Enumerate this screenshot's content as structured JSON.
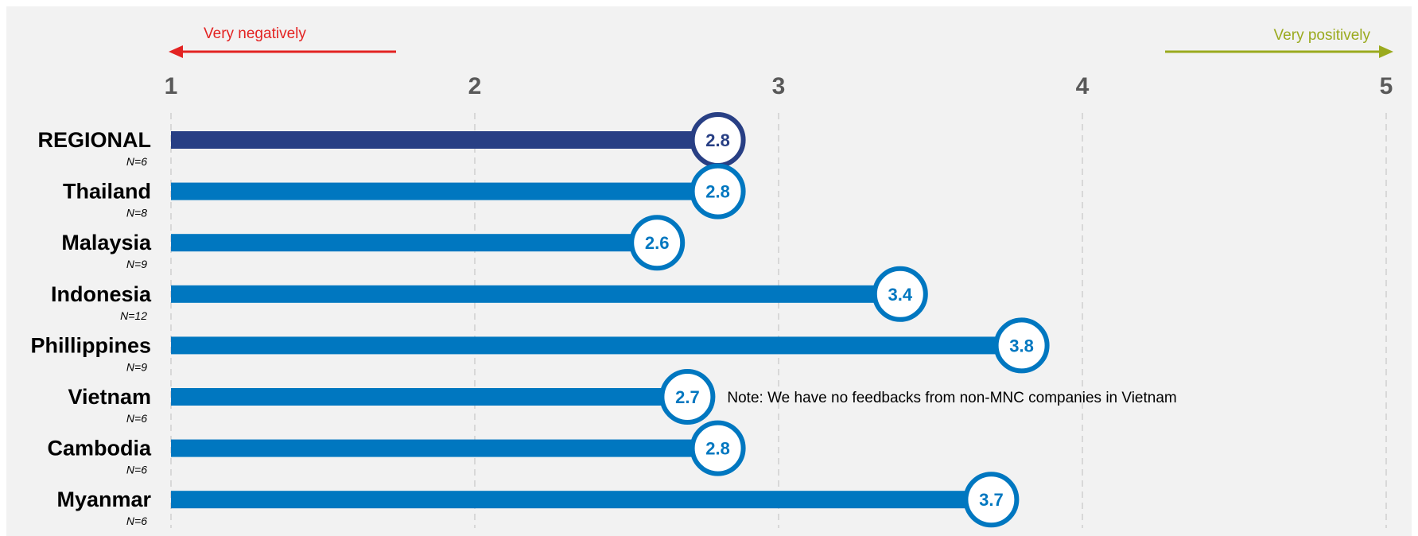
{
  "chart_data": {
    "type": "bar",
    "orientation": "horizontal",
    "x_range": [
      1,
      5
    ],
    "x_ticks": [
      1,
      2,
      3,
      4,
      5
    ],
    "grid": true,
    "scale_left_label": "Very negatively",
    "scale_right_label": "Very positively",
    "categories": [
      "REGIONAL",
      "Thailand",
      "Malaysia",
      "Indonesia",
      "Phillippines",
      "Vietnam",
      "Cambodia",
      "Myanmar"
    ],
    "n_labels": [
      "N=6",
      "N=8",
      "N=9",
      "N=12",
      "N=9",
      "N=6",
      "N=6",
      "N=6"
    ],
    "values": [
      2.8,
      2.8,
      2.6,
      3.4,
      3.8,
      2.7,
      2.8,
      3.7
    ],
    "value_labels": [
      "2.8",
      "2.8",
      "2.6",
      "3.4",
      "3.8",
      "2.7",
      "2.8",
      "3.7"
    ],
    "annotation": {
      "category": "Vietnam",
      "text": "Note: We have no feedbacks from non-MNC companies in Vietnam"
    },
    "colors": {
      "highlight": "#283F84",
      "bar": "#0077C0",
      "negative_arrow": "#E32322",
      "positive_arrow": "#9AAA1E",
      "tick_text": "#595959",
      "grid": "#D0D0D0",
      "background": "#F2F2F2"
    }
  }
}
